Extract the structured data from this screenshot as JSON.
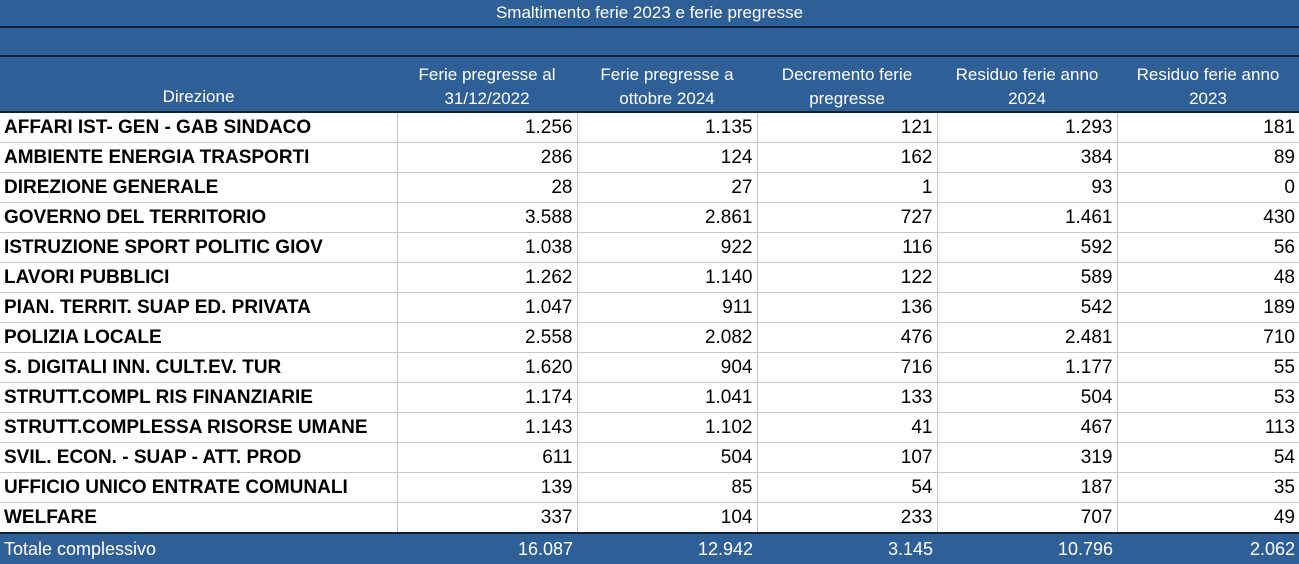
{
  "title": "Smaltimento ferie 2023 e ferie pregresse",
  "headers": [
    "Direzione",
    "Ferie pregresse al 31/12/2022",
    "Ferie pregresse a ottobre 2024",
    "Decremento ferie pregresse",
    "Residuo ferie anno 2024",
    "Residuo ferie anno 2023"
  ],
  "rows": [
    [
      "AFFARI IST- GEN - GAB SINDACO",
      "1.256",
      "1.135",
      "121",
      "1.293",
      "181"
    ],
    [
      "AMBIENTE ENERGIA TRASPORTI",
      "286",
      "124",
      "162",
      "384",
      "89"
    ],
    [
      "DIREZIONE GENERALE",
      "28",
      "27",
      "1",
      "93",
      "0"
    ],
    [
      "GOVERNO DEL TERRITORIO",
      "3.588",
      "2.861",
      "727",
      "1.461",
      "430"
    ],
    [
      "ISTRUZIONE  SPORT POLITIC GIOV",
      "1.038",
      "922",
      "116",
      "592",
      "56"
    ],
    [
      "LAVORI PUBBLICI",
      "1.262",
      "1.140",
      "122",
      "589",
      "48"
    ],
    [
      "PIAN. TERRIT. SUAP ED. PRIVATA",
      "1.047",
      "911",
      "136",
      "542",
      "189"
    ],
    [
      "POLIZIA LOCALE",
      "2.558",
      "2.082",
      "476",
      "2.481",
      "710"
    ],
    [
      "S. DIGITALI  INN. CULT.EV. TUR",
      "1.620",
      "904",
      "716",
      "1.177",
      "55"
    ],
    [
      "STRUTT.COMPL RIS FINANZIARIE",
      "1.174",
      "1.041",
      "133",
      "504",
      "53"
    ],
    [
      "STRUTT.COMPLESSA RISORSE UMANE",
      "1.143",
      "1.102",
      "41",
      "467",
      "113"
    ],
    [
      "SVIL. ECON. - SUAP - ATT. PROD",
      "611",
      "504",
      "107",
      "319",
      "54"
    ],
    [
      "UFFICIO UNICO ENTRATE COMUNALI",
      "139",
      "85",
      "54",
      "187",
      "35"
    ],
    [
      "WELFARE",
      "337",
      "104",
      "233",
      "707",
      "49"
    ]
  ],
  "total": [
    "Totale complessivo",
    "16.087",
    "12.942",
    "3.145",
    "10.796",
    "2.062"
  ],
  "colors": {
    "header_bg": "#2f5f97",
    "header_text": "#ffffff",
    "grid": "#c9c9c9"
  }
}
